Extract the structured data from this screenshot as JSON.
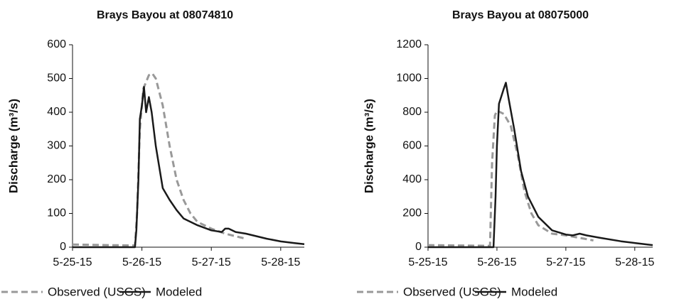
{
  "chart_data": [
    {
      "type": "line",
      "title": "Brays Bayou at 08074810",
      "y_label": "Discharge (m³/s)",
      "xlim": [
        25,
        28.34
      ],
      "ylim": [
        0,
        600
      ],
      "xticks": [
        {
          "value": 25,
          "label": "5-25-15"
        },
        {
          "value": 26,
          "label": "5-26-15"
        },
        {
          "value": 27,
          "label": "5-27-15"
        },
        {
          "value": 28,
          "label": "5-28-15"
        }
      ],
      "yticks": [
        0,
        100,
        200,
        300,
        400,
        500,
        600
      ],
      "series": [
        {
          "name": "Observed (USGS)",
          "color": "#999999",
          "dashed": true,
          "x": [
            25,
            25.5,
            25.9,
            25.93,
            25.97,
            26.02,
            26.1,
            26.15,
            26.2,
            26.3,
            26.4,
            26.5,
            26.6,
            26.7,
            26.8,
            27.0,
            27.2,
            27.4,
            27.5
          ],
          "values": [
            8,
            6,
            5,
            100,
            350,
            470,
            510,
            515,
            500,
            420,
            300,
            200,
            140,
            100,
            75,
            55,
            40,
            30,
            25
          ]
        },
        {
          "name": "Modeled",
          "color": "#1a1a1a",
          "dashed": false,
          "x": [
            25,
            25.9,
            25.92,
            25.95,
            25.97,
            26.0,
            26.03,
            26.06,
            26.1,
            26.14,
            26.2,
            26.3,
            26.4,
            26.5,
            26.6,
            26.8,
            27.0,
            27.15,
            27.2,
            27.25,
            27.35,
            27.5,
            27.6,
            27.8,
            28.0,
            28.2,
            28.34
          ],
          "values": [
            0,
            0,
            50,
            200,
            380,
            420,
            475,
            400,
            445,
            400,
            300,
            175,
            140,
            110,
            85,
            65,
            50,
            45,
            55,
            55,
            45,
            40,
            35,
            25,
            17,
            12,
            9
          ]
        }
      ]
    },
    {
      "type": "line",
      "title": "Brays Bayou at 08075000",
      "y_label": "Discharge (m³/s)",
      "xlim": [
        25,
        28.26
      ],
      "ylim": [
        0,
        1200
      ],
      "xticks": [
        {
          "value": 25,
          "label": "5-25-15"
        },
        {
          "value": 26,
          "label": "5-26-15"
        },
        {
          "value": 27,
          "label": "5-27-15"
        },
        {
          "value": 28,
          "label": "5-28-15"
        }
      ],
      "yticks": [
        0,
        200,
        400,
        600,
        800,
        1000,
        1200
      ],
      "series": [
        {
          "name": "Observed (USGS)",
          "color": "#999999",
          "dashed": true,
          "x": [
            25,
            25.9,
            25.93,
            25.97,
            26.0,
            26.1,
            26.2,
            26.3,
            26.4,
            26.5,
            26.6,
            26.8,
            27.0,
            27.2,
            27.4
          ],
          "values": [
            12,
            8,
            500,
            780,
            810,
            790,
            720,
            550,
            330,
            200,
            130,
            80,
            70,
            55,
            40
          ]
        },
        {
          "name": "Modeled",
          "color": "#1a1a1a",
          "dashed": false,
          "x": [
            25,
            25.95,
            25.98,
            26.0,
            26.03,
            26.1,
            26.13,
            26.17,
            26.25,
            26.35,
            26.45,
            26.6,
            26.8,
            27.0,
            27.1,
            27.2,
            27.3,
            27.5,
            27.8,
            28.0,
            28.26
          ],
          "values": [
            0,
            0,
            300,
            600,
            850,
            940,
            975,
            880,
            700,
            450,
            300,
            180,
            100,
            75,
            70,
            80,
            70,
            55,
            35,
            25,
            12
          ]
        }
      ]
    }
  ]
}
